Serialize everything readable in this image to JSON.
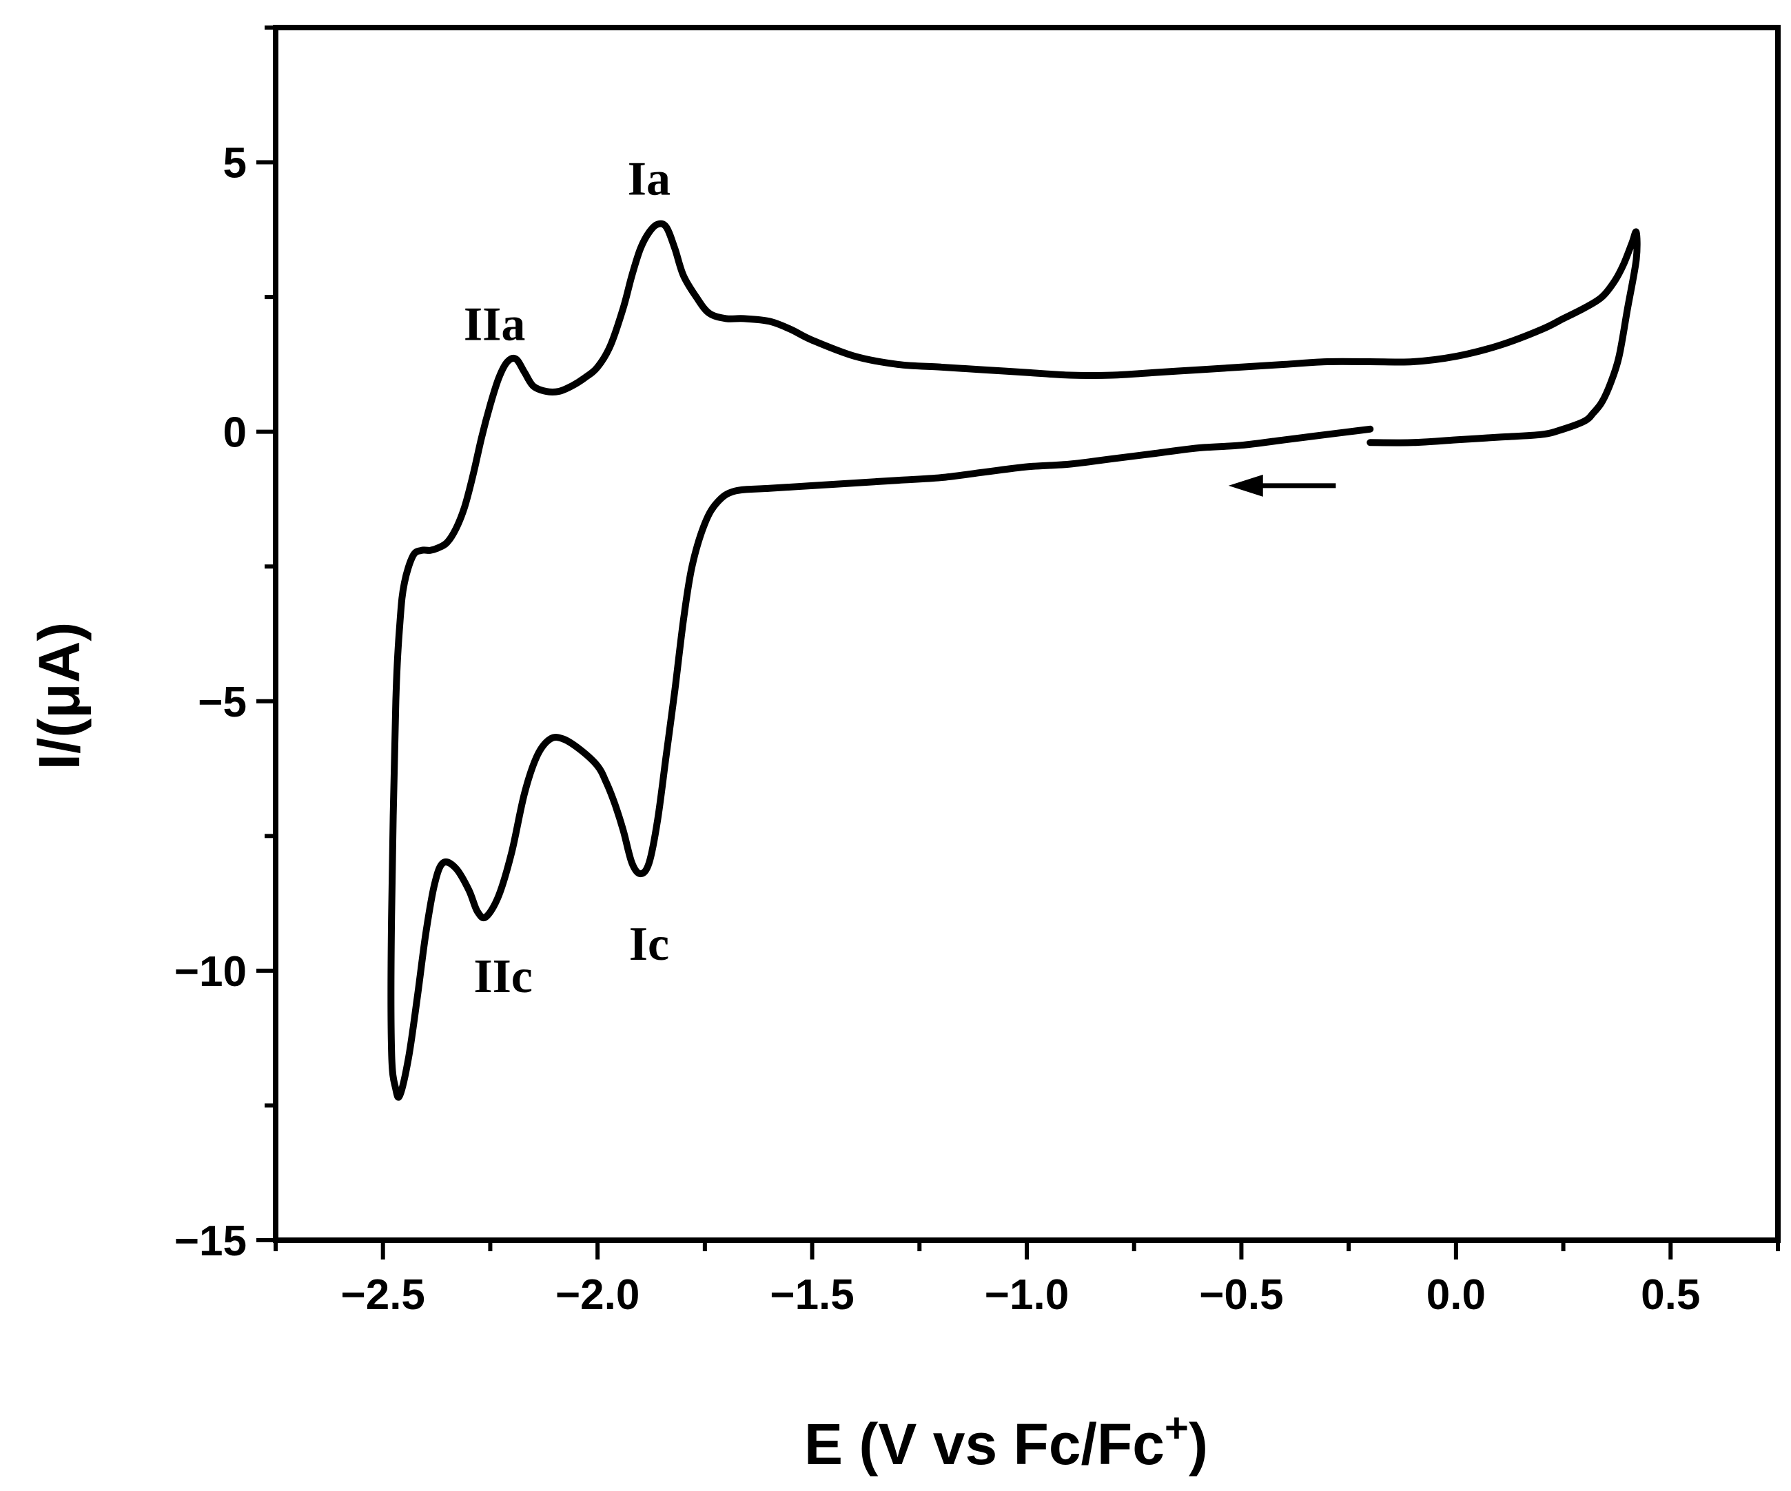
{
  "chart_data": {
    "type": "line",
    "title": "",
    "xlabel": "E (V vs Fc/Fc",
    "xlabel_sup": "+",
    "xlabel_close": ")",
    "ylabel": "I/(μA)",
    "xlim": [
      -2.75,
      0.75
    ],
    "ylim": [
      -15,
      7.5
    ],
    "x_ticks": [
      -2.5,
      -2.0,
      -1.5,
      -1.0,
      -0.5,
      0.0,
      0.5
    ],
    "x_tick_labels": [
      "−2.5",
      "−2.0",
      "−1.5",
      "−1.0",
      "−0.5",
      "0.0",
      "0.5"
    ],
    "y_ticks": [
      5,
      0,
      -5,
      -10,
      -15
    ],
    "y_tick_labels": [
      "5",
      "0",
      "−5",
      "−10",
      "−15"
    ],
    "grid": false,
    "legend": "none",
    "line_color": "#000000",
    "series": [
      {
        "x": [
          -0.2,
          -0.25,
          -0.3,
          -0.4,
          -0.5,
          -0.6,
          -0.7,
          -0.8,
          -0.9,
          -1.0,
          -1.1,
          -1.2,
          -1.3,
          -1.4,
          -1.5,
          -1.6,
          -1.68,
          -1.72,
          -1.75,
          -1.78,
          -1.8,
          -1.82,
          -1.84,
          -1.86,
          -1.88,
          -1.9,
          -1.92,
          -1.94,
          -1.96,
          -1.98,
          -2.0,
          -2.04,
          -2.08,
          -2.11,
          -2.14,
          -2.17,
          -2.2,
          -2.23,
          -2.26,
          -2.28,
          -2.3,
          -2.33,
          -2.36,
          -2.38,
          -2.4,
          -2.42,
          -2.44,
          -2.46,
          -2.47,
          -2.48,
          -2.48,
          -2.47,
          -2.46,
          -2.45,
          -2.43,
          -2.41,
          -2.39,
          -2.37,
          -2.35,
          -2.33,
          -2.31,
          -2.29,
          -2.27,
          -2.25,
          -2.23,
          -2.21,
          -2.19,
          -2.17,
          -2.15,
          -2.12,
          -2.09,
          -2.06,
          -2.03,
          -2.0,
          -1.97,
          -1.94,
          -1.92,
          -1.9,
          -1.88,
          -1.86,
          -1.84,
          -1.82,
          -1.8,
          -1.77,
          -1.74,
          -1.7,
          -1.66,
          -1.6,
          -1.55,
          -1.5,
          -1.4,
          -1.3,
          -1.2,
          -1.1,
          -1.0,
          -0.9,
          -0.8,
          -0.7,
          -0.6,
          -0.5,
          -0.4,
          -0.3,
          -0.2,
          -0.1,
          0.0,
          0.1,
          0.2,
          0.25,
          0.3,
          0.34,
          0.37,
          0.39,
          0.41,
          0.42,
          0.42,
          0.4,
          0.38,
          0.36,
          0.34,
          0.32,
          0.3,
          0.25,
          0.2,
          0.1,
          0.0,
          -0.1,
          -0.2
        ],
        "y": [
          0.05,
          0.0,
          -0.05,
          -0.15,
          -0.25,
          -0.3,
          -0.4,
          -0.5,
          -0.6,
          -0.65,
          -0.75,
          -0.85,
          -0.9,
          -0.95,
          -1.0,
          -1.05,
          -1.1,
          -1.3,
          -1.7,
          -2.5,
          -3.5,
          -4.8,
          -6.0,
          -7.2,
          -8.0,
          -8.2,
          -8.0,
          -7.4,
          -6.9,
          -6.5,
          -6.2,
          -5.9,
          -5.7,
          -5.7,
          -6.0,
          -6.7,
          -7.8,
          -8.6,
          -9.0,
          -8.9,
          -8.5,
          -8.1,
          -8.0,
          -8.4,
          -9.3,
          -10.5,
          -11.6,
          -12.3,
          -12.2,
          -11.5,
          -9.0,
          -5.0,
          -3.5,
          -2.8,
          -2.3,
          -2.2,
          -2.2,
          -2.15,
          -2.05,
          -1.8,
          -1.4,
          -0.8,
          -0.1,
          0.5,
          1.0,
          1.3,
          1.35,
          1.1,
          0.85,
          0.75,
          0.75,
          0.85,
          1.0,
          1.2,
          1.6,
          2.3,
          2.9,
          3.4,
          3.7,
          3.85,
          3.8,
          3.4,
          2.9,
          2.5,
          2.2,
          2.1,
          2.1,
          2.05,
          1.9,
          1.7,
          1.4,
          1.25,
          1.2,
          1.15,
          1.1,
          1.05,
          1.05,
          1.1,
          1.15,
          1.2,
          1.25,
          1.3,
          1.3,
          1.3,
          1.4,
          1.6,
          1.9,
          2.1,
          2.3,
          2.5,
          2.8,
          3.1,
          3.5,
          3.7,
          3.2,
          2.3,
          1.4,
          0.9,
          0.55,
          0.35,
          0.2,
          0.05,
          -0.05,
          -0.1,
          -0.15,
          -0.2,
          -0.2
        ]
      }
    ],
    "annotations": [
      {
        "text": "Ia",
        "x": -1.88,
        "y": 4.4
      },
      {
        "text": "IIa",
        "x": -2.24,
        "y": 1.7
      },
      {
        "text": "Ic",
        "x": -1.88,
        "y": -9.8
      },
      {
        "text": "IIc",
        "x": -2.22,
        "y": -10.4
      }
    ],
    "scan_arrow": {
      "from_x": -0.28,
      "to_x": -0.53,
      "y": -1.0
    }
  }
}
